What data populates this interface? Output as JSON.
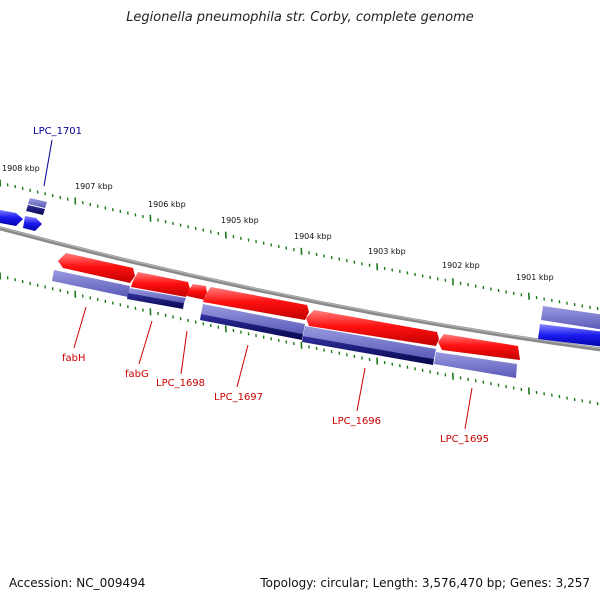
{
  "title": "Legionella pneumophila str. Corby, complete genome",
  "footer": {
    "accession": "Accession: NC_009494",
    "summary": "Topology: circular; Length: 3,576,470 bp; Genes: 3,257"
  },
  "colors": {
    "forward_gene": "#ff0000",
    "reverse_gene": "#2222ee",
    "cds_lavender": "#7777cc",
    "cds_navy": "#0a0a80",
    "backbone": "#808080",
    "tick": "#1a7a1a",
    "label_red": "#cc0000",
    "label_blue": "#000099"
  },
  "scale_labels": [
    "1908 kbp",
    "1907 kbp",
    "1906 kbp",
    "1905 kbp",
    "1904 kbp",
    "1903 kbp",
    "1902 kbp",
    "1901 kbp"
  ],
  "gene_labels": [
    {
      "name": "LPC_1701",
      "color": "blue"
    },
    {
      "name": "fabH",
      "color": "red"
    },
    {
      "name": "fabG",
      "color": "red"
    },
    {
      "name": "LPC_1698",
      "color": "red"
    },
    {
      "name": "LPC_1697",
      "color": "red"
    },
    {
      "name": "LPC_1696",
      "color": "red"
    },
    {
      "name": "LPC_1695",
      "color": "red"
    }
  ]
}
